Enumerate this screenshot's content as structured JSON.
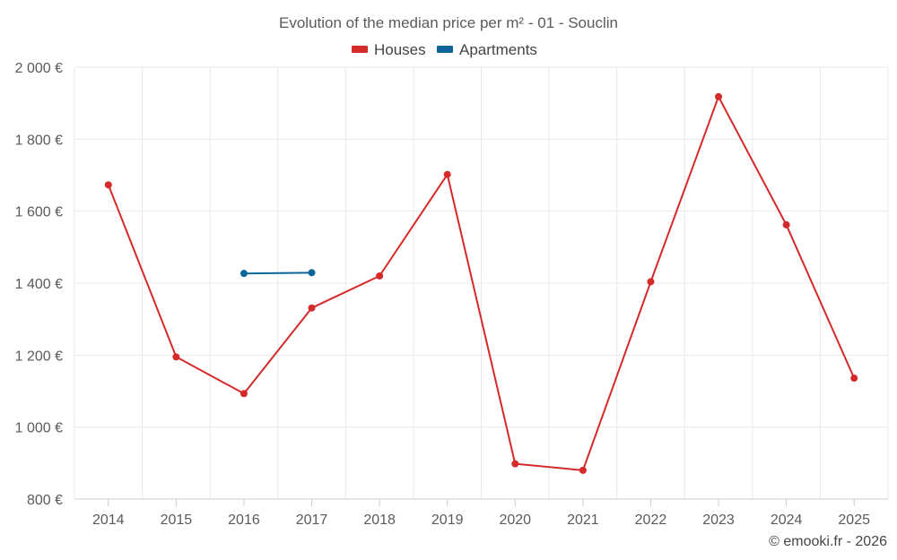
{
  "chart_data": {
    "type": "line",
    "title": "Evolution of the median price per m² - 01 - Souclin",
    "categories": [
      "2014",
      "2015",
      "2016",
      "2017",
      "2018",
      "2019",
      "2020",
      "2021",
      "2022",
      "2023",
      "2024",
      "2025"
    ],
    "series": [
      {
        "name": "Houses",
        "color": "#d42a2a",
        "values": [
          1673,
          1195,
          1093,
          1331,
          1420,
          1702,
          898,
          880,
          1404,
          1918,
          1562,
          1136
        ]
      },
      {
        "name": "Apartments",
        "color": "#0d6699",
        "values": [
          null,
          null,
          1427,
          1429,
          null,
          null,
          null,
          null,
          null,
          null,
          null,
          null
        ]
      }
    ],
    "y_ticks": [
      800,
      1000,
      1200,
      1400,
      1600,
      1800,
      2000
    ],
    "y_tick_labels": [
      "800 €",
      "1 000 €",
      "1 200 €",
      "1 400 €",
      "1 600 €",
      "1 800 €",
      "2 000 €"
    ],
    "ylim": [
      800,
      2000
    ],
    "xlabel": "",
    "ylabel": "",
    "grid": true,
    "legend_position": "top-center",
    "credit": "© emooki.fr - 2026"
  }
}
